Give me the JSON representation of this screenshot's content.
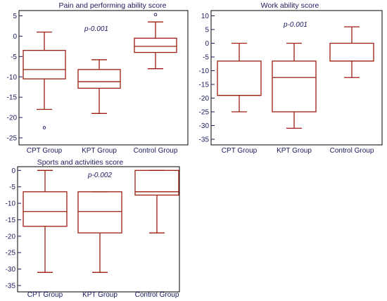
{
  "colors": {
    "box": "#9c1f12",
    "axis": "#1a1a5e",
    "text": "#1a1a5e",
    "frame": "#000000"
  },
  "chart_data": [
    {
      "type": "box",
      "title": "Pain and performing ability score",
      "annotation": "p-0.001",
      "ylim": [
        -26,
        6
      ],
      "yticks": [
        5,
        0,
        -5,
        -10,
        -15,
        -20,
        -25
      ],
      "grid": false,
      "categories": [
        "CPT Group",
        "KPT Group",
        "Control Group"
      ],
      "boxes": [
        {
          "whisker_low": -18,
          "q1": -10.5,
          "median": -8.2,
          "q3": -3.5,
          "whisker_high": 1,
          "outliers": [
            -22.5
          ]
        },
        {
          "whisker_low": -19,
          "q1": -12.8,
          "median": -11.2,
          "q3": -8.2,
          "whisker_high": -5.8,
          "outliers": []
        },
        {
          "whisker_low": -8,
          "q1": -4,
          "median": -2.5,
          "q3": -0.5,
          "whisker_high": 3.5,
          "outliers": [
            5.3
          ]
        }
      ]
    },
    {
      "type": "box",
      "title": "Work ability score",
      "annotation": "p-0.001",
      "ylim": [
        -36,
        11
      ],
      "yticks": [
        10,
        5,
        0,
        -5,
        -10,
        -15,
        -20,
        -25,
        -30,
        -35
      ],
      "grid": false,
      "categories": [
        "CPT Group",
        "KPT Group",
        "Control Group"
      ],
      "boxes": [
        {
          "whisker_low": -25,
          "q1": -19,
          "median": -19,
          "q3": -6.5,
          "whisker_high": 0,
          "outliers": []
        },
        {
          "whisker_low": -31,
          "q1": -25,
          "median": -12.5,
          "q3": -6.5,
          "whisker_high": 0,
          "outliers": []
        },
        {
          "whisker_low": -12.5,
          "q1": -6.5,
          "median": -6.5,
          "q3": 0,
          "whisker_high": 6,
          "outliers": []
        }
      ]
    },
    {
      "type": "box",
      "title": "Sports and activities score",
      "annotation": "p-0.002",
      "ylim": [
        -36,
        1
      ],
      "yticks": [
        0,
        -5,
        -10,
        -15,
        -20,
        -25,
        -30,
        -35
      ],
      "grid": false,
      "categories": [
        "CPT Group",
        "KPT Group",
        "Control Group"
      ],
      "boxes": [
        {
          "whisker_low": -31,
          "q1": -17,
          "median": -12.5,
          "q3": -6.5,
          "whisker_high": 0,
          "outliers": []
        },
        {
          "whisker_low": -31,
          "q1": -19,
          "median": -12.5,
          "q3": -6.5,
          "whisker_high": -6.5,
          "outliers": []
        },
        {
          "whisker_low": -19,
          "q1": -7.5,
          "median": -6.5,
          "q3": 0,
          "whisker_high": 0,
          "outliers": []
        }
      ]
    }
  ]
}
